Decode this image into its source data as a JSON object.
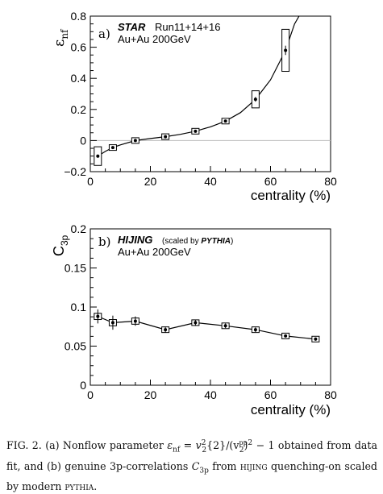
{
  "chart_data": [
    {
      "type": "line",
      "panel_label": "a)",
      "experiment": "STAR",
      "runs": "Run11+14+16",
      "system": "Au+Au 200GeV",
      "ylabel_main": "ε",
      "ylabel_sub": "nf",
      "xlabel": "centrality (%)",
      "xlim": [
        0,
        80
      ],
      "ylim": [
        -0.2,
        0.8
      ],
      "xticks": [
        "0",
        "20",
        "40",
        "60",
        "80"
      ],
      "yticks": [
        "−0.2",
        "0",
        "0.2",
        "0.4",
        "0.6",
        "0.8"
      ],
      "ytick_values": [
        -0.2,
        0,
        0.2,
        0.4,
        0.6,
        0.8
      ],
      "zero_line": true,
      "points": [
        {
          "x": 2.5,
          "y": -0.1,
          "stat": 0.01,
          "sys": 0.06
        },
        {
          "x": 7.5,
          "y": -0.045,
          "stat": 0.005,
          "sys": 0.015
        },
        {
          "x": 15,
          "y": 0.0,
          "stat": 0.005,
          "sys": 0.01
        },
        {
          "x": 25,
          "y": 0.025,
          "stat": 0.004,
          "sys": 0.008
        },
        {
          "x": 35,
          "y": 0.06,
          "stat": 0.004,
          "sys": 0.008
        },
        {
          "x": 45,
          "y": 0.125,
          "stat": 0.006,
          "sys": 0.012
        },
        {
          "x": 55,
          "y": 0.265,
          "stat": 0.015,
          "sys": 0.055
        },
        {
          "x": 65,
          "y": 0.58,
          "stat": 0.03,
          "sys": 0.135
        }
      ],
      "fit_curve": [
        [
          2.5,
          -0.1
        ],
        [
          5,
          -0.07
        ],
        [
          7.5,
          -0.045
        ],
        [
          10,
          -0.028
        ],
        [
          15,
          0.0
        ],
        [
          20,
          0.013
        ],
        [
          25,
          0.025
        ],
        [
          30,
          0.04
        ],
        [
          35,
          0.06
        ],
        [
          40,
          0.088
        ],
        [
          45,
          0.125
        ],
        [
          50,
          0.18
        ],
        [
          55,
          0.265
        ],
        [
          60,
          0.39
        ],
        [
          65,
          0.58
        ],
        [
          68,
          0.75
        ],
        [
          69.5,
          0.8
        ]
      ]
    },
    {
      "type": "line",
      "panel_label": "b)",
      "experiment": "HIJING",
      "scaled_prefix": "(scaled by ",
      "scaled_by": "PYTHIA",
      "scaled_suffix": ")",
      "system": "Au+Au 200GeV",
      "ylabel_main": "C",
      "ylabel_sub": "3p",
      "xlabel": "centrality (%)",
      "xlim": [
        0,
        80
      ],
      "ylim": [
        0,
        0.2
      ],
      "xticks": [
        "0",
        "20",
        "40",
        "60",
        "80"
      ],
      "yticks": [
        "0",
        "0.05",
        "0.1",
        "0.15",
        "0.2"
      ],
      "ytick_values": [
        0,
        0.05,
        0.1,
        0.15,
        0.2
      ],
      "points": [
        {
          "x": 2.5,
          "y": 0.088,
          "stat": 0.009,
          "sys": 0.004
        },
        {
          "x": 7.5,
          "y": 0.08,
          "stat": 0.009,
          "sys": 0.004
        },
        {
          "x": 15,
          "y": 0.082,
          "stat": 0.006,
          "sys": 0.004
        },
        {
          "x": 25,
          "y": 0.071,
          "stat": 0.004,
          "sys": 0.003
        },
        {
          "x": 35,
          "y": 0.08,
          "stat": 0.004,
          "sys": 0.003
        },
        {
          "x": 45,
          "y": 0.076,
          "stat": 0.003,
          "sys": 0.003
        },
        {
          "x": 55,
          "y": 0.071,
          "stat": 0.003,
          "sys": 0.003
        },
        {
          "x": 65,
          "y": 0.063,
          "stat": 0.002,
          "sys": 0.002
        },
        {
          "x": 75,
          "y": 0.059,
          "stat": 0.002,
          "sys": 0.002
        }
      ]
    }
  ],
  "caption": {
    "fig": "FIG. 2.",
    "t1": "(a) Nonflow parameter ",
    "eq_a": "ε",
    "eq_a_sub": "nf",
    "eq_mid": " = v",
    "eq_v_sub": "2",
    "eq_v_sup": "2",
    "eq_braces": "{2}/(v",
    "eq_pp_sub": "2",
    "eq_pp_sup": "pp",
    "eq_end": ")",
    "eq_sq": "2",
    "eq_tail": " − 1",
    "t2": " obtained from data fit, and (b) genuine 3p-correlations ",
    "c_main": "C",
    "c_sub": "3p",
    "t3": " from ",
    "hijing": "hijing",
    "t4": " quenching-on scaled by modern ",
    "pythia": "pythia",
    "t5": "."
  }
}
